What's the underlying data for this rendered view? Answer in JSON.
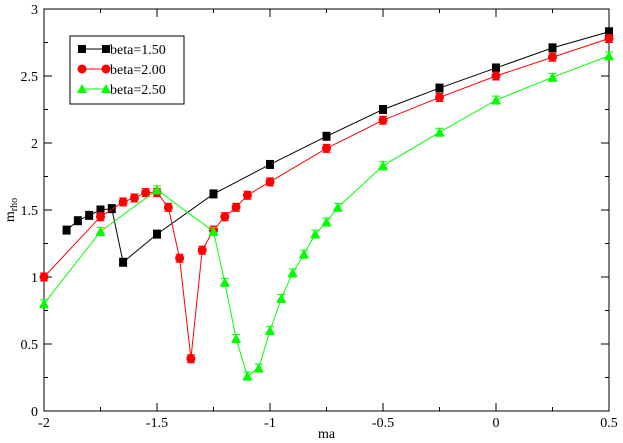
{
  "chart_data": {
    "type": "line",
    "xlabel": "ma",
    "ylabel_main": "m",
    "ylabel_sub": "rho",
    "xlim": [
      -2,
      0.5
    ],
    "ylim": [
      0,
      3
    ],
    "xticks": [
      -2,
      -1.5,
      -1,
      -0.5,
      0,
      0.5
    ],
    "xtick_labels": [
      "-2",
      "-1.5",
      "-1",
      "-0.5",
      "0",
      "0.5"
    ],
    "yticks": [
      0,
      0.5,
      1,
      1.5,
      2,
      2.5,
      3
    ],
    "ytick_labels": [
      "0",
      "0.5",
      "1",
      "1.5",
      "2",
      "2.5",
      "3"
    ],
    "grid": false,
    "legend_position": "top-left",
    "series": [
      {
        "name": "beta=1.50",
        "color": "#000000",
        "marker": "square",
        "x": [
          -1.9,
          -1.85,
          -1.8,
          -1.75,
          -1.7,
          -1.65,
          -1.5,
          -1.25,
          -1.0,
          -0.75,
          -0.5,
          -0.25,
          0.0,
          0.25,
          0.5
        ],
        "y": [
          1.35,
          1.42,
          1.46,
          1.5,
          1.51,
          1.11,
          1.32,
          1.62,
          1.84,
          2.05,
          2.25,
          2.41,
          2.56,
          2.71,
          2.83
        ]
      },
      {
        "name": "beta=2.00",
        "color": "#ff0000",
        "marker": "circle",
        "x": [
          -2.0,
          -1.75,
          -1.65,
          -1.6,
          -1.55,
          -1.5,
          -1.45,
          -1.4,
          -1.35,
          -1.3,
          -1.25,
          -1.2,
          -1.15,
          -1.1,
          -1.0,
          -0.75,
          -0.5,
          -0.25,
          0.0,
          0.25,
          0.5
        ],
        "y": [
          1.0,
          1.45,
          1.56,
          1.59,
          1.63,
          1.63,
          1.52,
          1.14,
          0.39,
          1.2,
          1.35,
          1.45,
          1.52,
          1.61,
          1.71,
          1.96,
          2.17,
          2.34,
          2.5,
          2.64,
          2.78
        ]
      },
      {
        "name": "beta=2.50",
        "color": "#00ff00",
        "marker": "triangle",
        "x": [
          -2.0,
          -1.75,
          -1.5,
          -1.25,
          -1.2,
          -1.15,
          -1.1,
          -1.05,
          -1.0,
          -0.95,
          -0.9,
          -0.85,
          -0.8,
          -0.75,
          -0.7,
          -0.5,
          -0.25,
          0.0,
          0.25,
          0.5
        ],
        "y": [
          0.8,
          1.34,
          1.65,
          1.34,
          0.96,
          0.54,
          0.26,
          0.32,
          0.6,
          0.84,
          1.03,
          1.17,
          1.32,
          1.41,
          1.52,
          1.83,
          2.08,
          2.32,
          2.49,
          2.65
        ]
      }
    ]
  }
}
